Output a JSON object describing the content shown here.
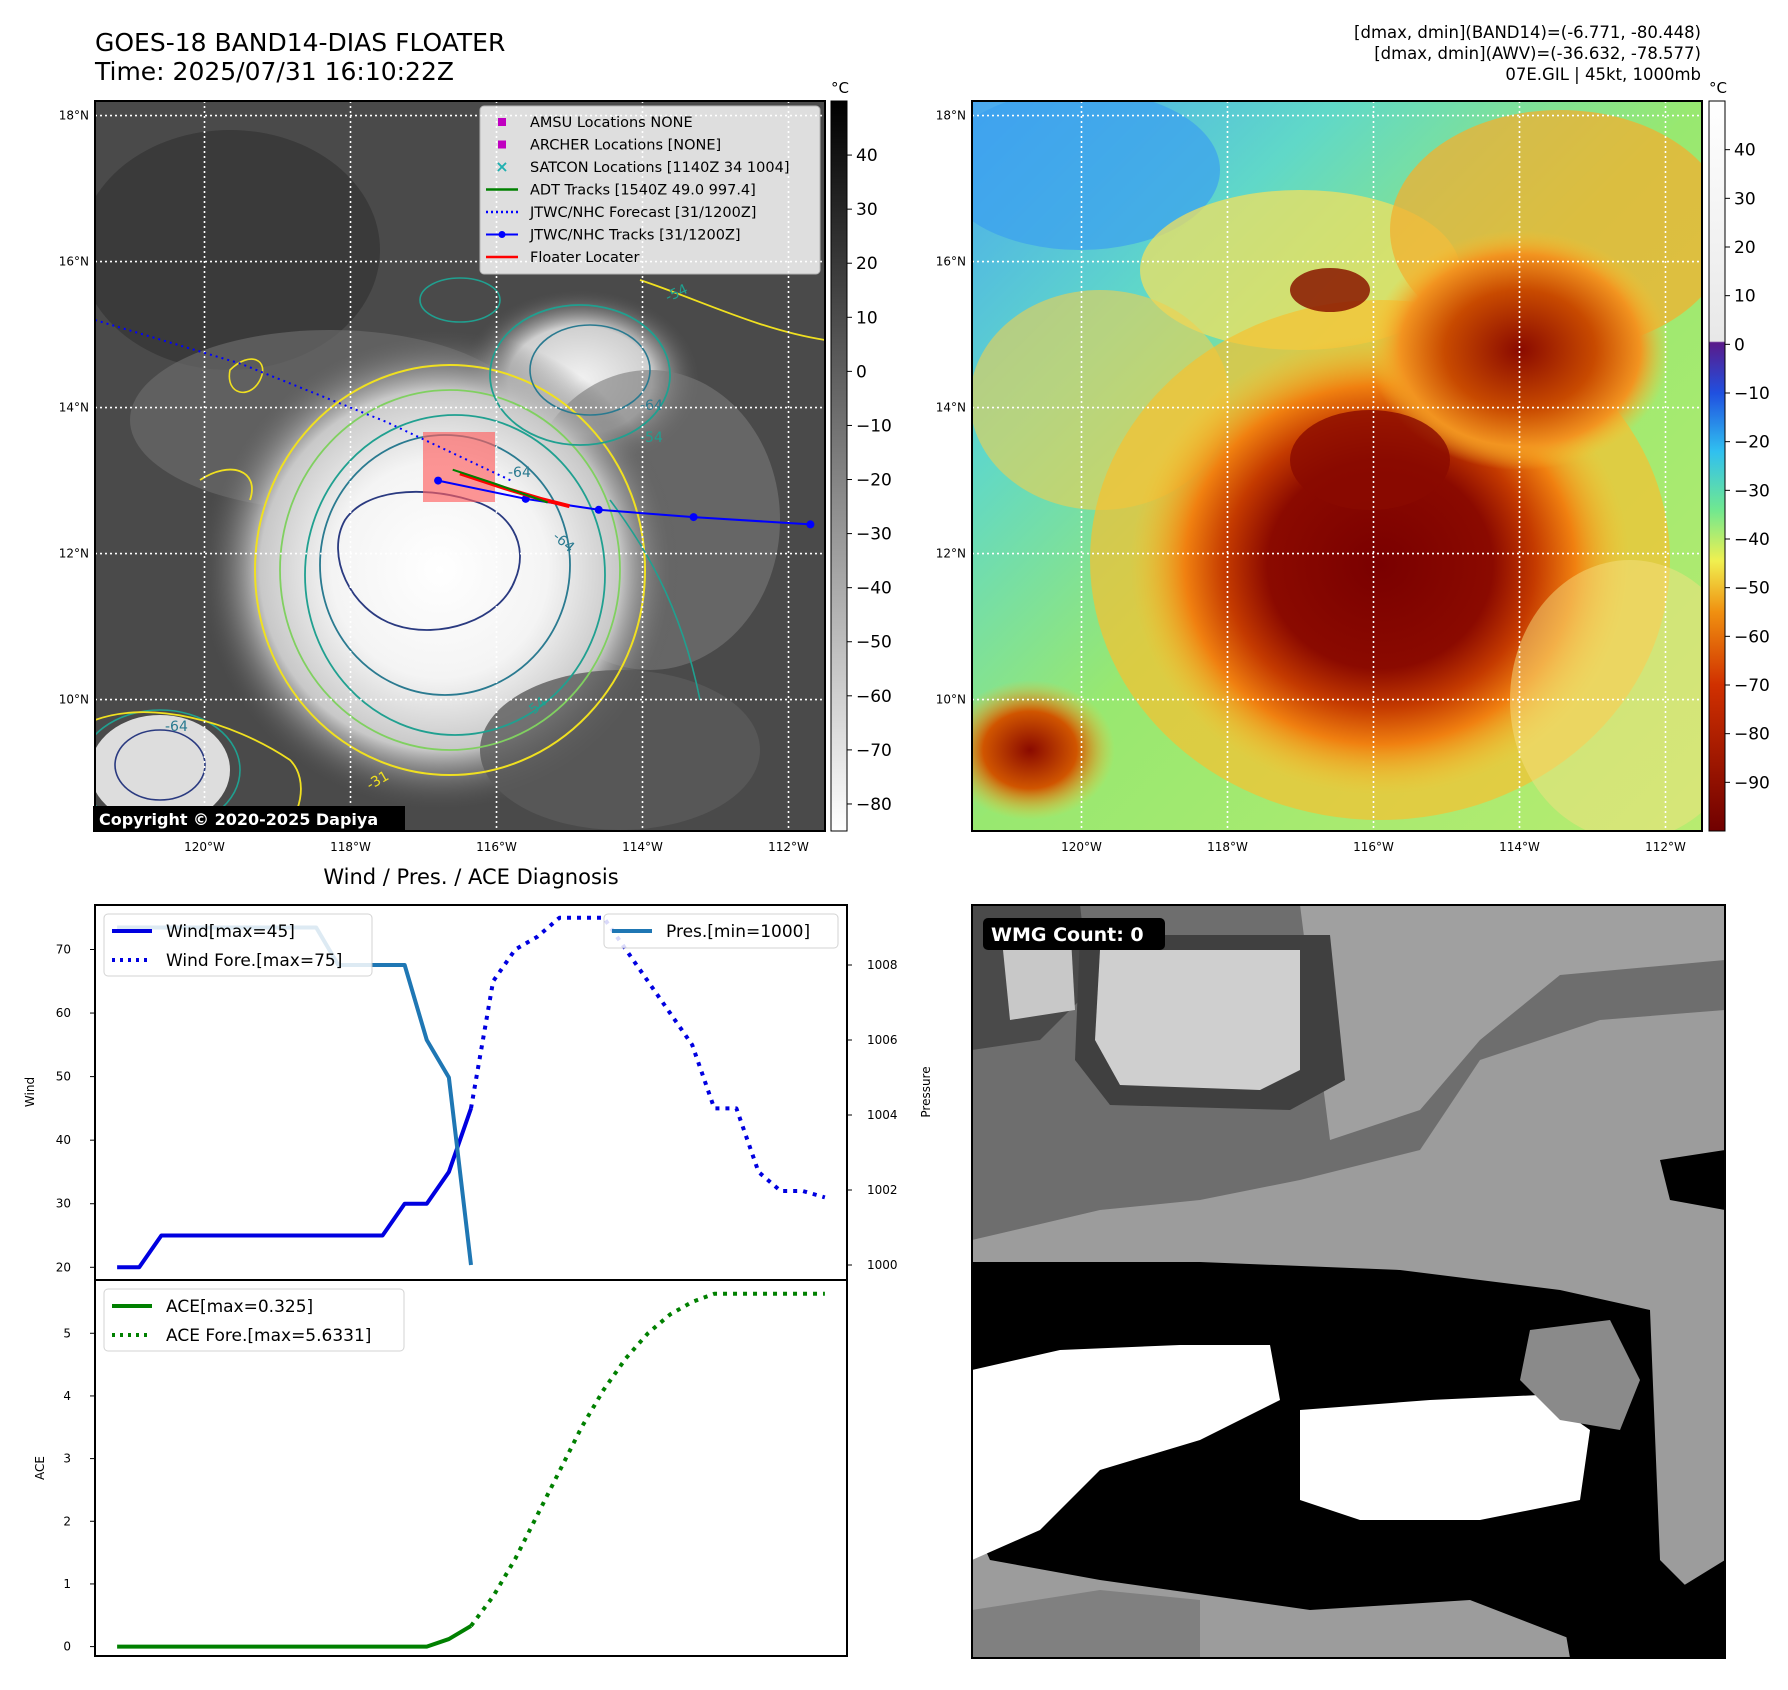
{
  "header": {
    "title_line1": "GOES-18 BAND14-DIAS FLOATER",
    "title_line2": "Time: 2025/07/31 16:10:22Z",
    "info_line1": "[dmax, dmin](BAND14)=(-6.771, -80.448)",
    "info_line2": "[dmax, dmin](AWV)=(-36.632, -78.577)",
    "info_line3": "07E.GIL | 45kt, 1000mb"
  },
  "map": {
    "lat_labels": [
      "18°N",
      "16°N",
      "14°N",
      "12°N",
      "10°N"
    ],
    "lat_values": [
      18,
      16,
      14,
      12,
      10
    ],
    "lon_labels": [
      "120°W",
      "118°W",
      "116°W",
      "114°W",
      "112°W"
    ],
    "lon_values": [
      -120,
      -118,
      -116,
      -114,
      -112
    ],
    "lon_range": [
      -121.5,
      -111.5
    ],
    "lat_range": [
      8.2,
      18.2
    ],
    "copyright": "Copyright © 2020-2025 Dapiya",
    "contour_labels": [
      "-54",
      "-64",
      "-54",
      "-64",
      "-64",
      "-54",
      "-31",
      "-64"
    ],
    "legend": [
      {
        "label": "AMSU Locations NONE",
        "symbol": "square",
        "color": "#c000c0"
      },
      {
        "label": "ARCHER Locations [NONE]",
        "symbol": "square",
        "color": "#c000c0"
      },
      {
        "label": "SATCON Locations [1140Z 34 1004]",
        "symbol": "x",
        "color": "#20b0b0"
      },
      {
        "label": "ADT Tracks [1540Z 49.0 997.4]",
        "symbol": "line",
        "color": "#008000"
      },
      {
        "label": "JTWC/NHC Forecast [31/1200Z]",
        "symbol": "dotted",
        "color": "#0000ff"
      },
      {
        "label": "JTWC/NHC Tracks [31/1200Z]",
        "symbol": "line-dot",
        "color": "#0000ff"
      },
      {
        "label": "Floater Locater",
        "symbol": "line",
        "color": "#ff0000"
      }
    ],
    "track_points": [
      [
        -116.8,
        13.0
      ],
      [
        -115.6,
        12.75
      ],
      [
        -114.6,
        12.6
      ],
      [
        -113.3,
        12.5
      ],
      [
        -111.7,
        12.4
      ]
    ],
    "forecast_points": [
      [
        -121.5,
        15.2
      ],
      [
        -119.5,
        14.6
      ],
      [
        -117.5,
        13.8
      ],
      [
        -115.8,
        13.0
      ]
    ]
  },
  "colorbar_bw": {
    "unit": "°C",
    "tick_labels": [
      "40",
      "30",
      "20",
      "10",
      "0",
      "−10",
      "−20",
      "−30",
      "−40",
      "−50",
      "−60",
      "−70",
      "−80"
    ],
    "tick_values": [
      40,
      30,
      20,
      10,
      0,
      -10,
      -20,
      -30,
      -40,
      -50,
      -60,
      -70,
      -80
    ],
    "range": [
      -85,
      50
    ]
  },
  "colorbar_color": {
    "unit": "°C",
    "tick_labels": [
      "40",
      "30",
      "20",
      "10",
      "0",
      "−10",
      "−20",
      "−30",
      "−40",
      "−50",
      "−60",
      "−70",
      "−80",
      "−90"
    ],
    "tick_values": [
      40,
      30,
      20,
      10,
      0,
      -10,
      -20,
      -30,
      -40,
      -50,
      -60,
      -70,
      -80,
      -90
    ],
    "range": [
      -100,
      50
    ]
  },
  "chart_data": [
    {
      "type": "line",
      "title": "Wind / Pres. / ACE Diagnosis",
      "ylabel": "Wind",
      "ylabel_right": "Pressure",
      "ylim": [
        18,
        77
      ],
      "ylim_right": [
        999.6,
        1009.6
      ],
      "xlim": [
        0,
        34
      ],
      "yticks": [
        20,
        30,
        40,
        50,
        60,
        70
      ],
      "yticks_right": [
        1000,
        1002,
        1004,
        1006,
        1008
      ],
      "series": [
        {
          "name": "Wind[max=45]",
          "style": "solid",
          "color": "#0000e0",
          "axis": "left",
          "x": [
            1,
            2,
            3,
            4,
            5,
            6,
            7,
            8,
            9,
            10,
            11,
            12,
            13,
            14,
            15,
            16,
            17
          ],
          "y": [
            20,
            20,
            25,
            25,
            25,
            25,
            25,
            25,
            25,
            25,
            25,
            25,
            25,
            30,
            30,
            35,
            45
          ]
        },
        {
          "name": "Wind Fore.[max=75]",
          "style": "dotted",
          "color": "#0000e0",
          "axis": "left",
          "x": [
            17,
            18,
            19,
            20,
            21,
            22,
            23,
            24,
            25,
            26,
            27,
            28,
            29,
            30,
            31,
            32,
            33
          ],
          "y": [
            45,
            65,
            70,
            72,
            75,
            75,
            75,
            70,
            65,
            60,
            55,
            45,
            45,
            35,
            32,
            32,
            31
          ]
        },
        {
          "name": "Pres.[min=1000]",
          "style": "solid",
          "color": "#1f77b4",
          "axis": "right",
          "x": [
            1,
            2,
            3,
            4,
            5,
            6,
            7,
            8,
            9,
            10,
            11,
            12,
            13,
            14,
            15,
            16,
            17
          ],
          "y": [
            1009.0,
            1009.0,
            1009.0,
            1009.0,
            1009.0,
            1009.0,
            1009.0,
            1009.0,
            1009.0,
            1009.0,
            1008.0,
            1008.0,
            1008.0,
            1008.0,
            1006.0,
            1005.0,
            1000.0
          ]
        }
      ]
    },
    {
      "type": "line",
      "ylabel": "ACE",
      "ylim": [
        -0.15,
        5.85
      ],
      "xlim": [
        0,
        34
      ],
      "yticks": [
        0,
        1,
        2,
        3,
        4,
        5
      ],
      "series": [
        {
          "name": "ACE[max=0.325]",
          "style": "solid",
          "color": "#008000",
          "x": [
            1,
            15,
            16,
            17
          ],
          "y": [
            0,
            0,
            0.12,
            0.33
          ]
        },
        {
          "name": "ACE Fore.[max=5.6331]",
          "style": "dotted",
          "color": "#008000",
          "x": [
            17,
            18,
            19,
            20,
            21,
            22,
            23,
            24,
            25,
            26,
            27,
            28,
            29,
            30,
            31,
            32,
            33
          ],
          "y": [
            0.33,
            0.8,
            1.4,
            2.1,
            2.8,
            3.5,
            4.1,
            4.6,
            5.0,
            5.3,
            5.5,
            5.63,
            5.63,
            5.63,
            5.63,
            5.63,
            5.63
          ]
        }
      ]
    }
  ],
  "wmg": {
    "label": "WMG Count: 0"
  }
}
